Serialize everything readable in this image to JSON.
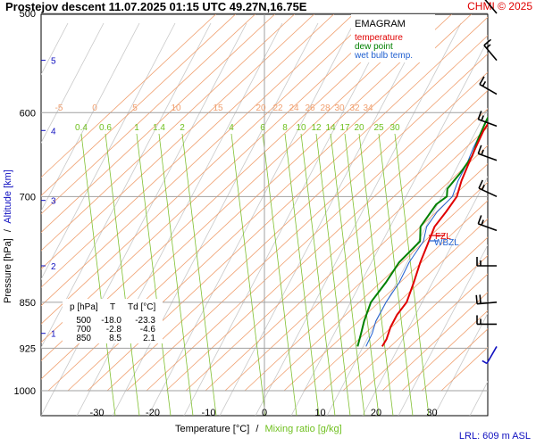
{
  "header": {
    "title": "Prostejov   descent   11.07.2025 01:15 UTC  49.27N,16.75E",
    "copyright": "CHMI © 2025"
  },
  "legend": {
    "title": "EMAGRAM",
    "items": [
      {
        "label": "temperature",
        "color": "#e00000"
      },
      {
        "label": "dew point",
        "color": "#008000"
      },
      {
        "label": "wet bulb temp.",
        "color": "#1f5fd0"
      }
    ]
  },
  "colors": {
    "temperature": "#e00000",
    "dewpoint": "#008000",
    "wetbulb": "#1f5fd0",
    "isotherm": "#f0a070",
    "mixing_ratio": "#80c030",
    "dry_adiabat": "#c8c8c8",
    "grid": "#a0a0a0",
    "altitude_text": "#1010c0"
  },
  "table": {
    "headers": [
      "p [hPa]",
      "T",
      "Td [°C]"
    ],
    "rows": [
      [
        "500",
        "-18.0",
        "-23.3"
      ],
      [
        "700",
        "-2.8",
        "-4.6"
      ],
      [
        "850",
        "8.5",
        "2.1"
      ]
    ]
  },
  "annotations": {
    "wbzl": "WBZL",
    "fzl": "FZL",
    "lrl": "LRL: 609 m ASL"
  },
  "chart_data": {
    "type": "line",
    "xlabel": "Temperature [°C]",
    "xlabel_sep": "/",
    "xlabel2": "Mixing ratio [g/kg]",
    "ylabel": "Pressure [hPa]",
    "ylabel_sep": "/",
    "ylabel2": "Altitude [km]",
    "xlim": [
      -40,
      40
    ],
    "ylim": [
      1000,
      500
    ],
    "y_scale": "log",
    "x_ticks": [
      -30,
      -20,
      -10,
      0,
      10,
      20,
      30
    ],
    "y_ticks": [
      500,
      600,
      700,
      850,
      925,
      1000
    ],
    "altitude_ticks": [
      {
        "km": 1,
        "p": 900
      },
      {
        "km": 2,
        "p": 795
      },
      {
        "km": 3,
        "p": 705
      },
      {
        "km": 4,
        "p": 620
      },
      {
        "km": 5,
        "p": 545
      }
    ],
    "isotherm_labels": [
      -5,
      0,
      5,
      10,
      15,
      20,
      22,
      24,
      26,
      28,
      30,
      32,
      34
    ],
    "mixing_ratio_labels": [
      0.4,
      0.6,
      1,
      1.4,
      2,
      4,
      6,
      8,
      10,
      12,
      14,
      17,
      20,
      25,
      30
    ],
    "series": [
      {
        "name": "temperature",
        "points": [
          {
            "p": 922,
            "t": 12.6
          },
          {
            "p": 910,
            "t": 12.0
          },
          {
            "p": 890,
            "t": 10.4
          },
          {
            "p": 870,
            "t": 9.2
          },
          {
            "p": 850,
            "t": 8.5
          },
          {
            "p": 820,
            "t": 6.0
          },
          {
            "p": 790,
            "t": 3.3
          },
          {
            "p": 765,
            "t": 1.2
          },
          {
            "p": 740,
            "t": -1.0
          },
          {
            "p": 720,
            "t": -1.8
          },
          {
            "p": 700,
            "t": -2.8
          },
          {
            "p": 680,
            "t": -5.0
          },
          {
            "p": 660,
            "t": -6.9
          },
          {
            "p": 640,
            "t": -8.8
          },
          {
            "p": 620,
            "t": -10.7
          },
          {
            "p": 600,
            "t": -12.0
          },
          {
            "p": 580,
            "t": -13.6
          },
          {
            "p": 560,
            "t": -14.6
          },
          {
            "p": 540,
            "t": -15.8
          },
          {
            "p": 520,
            "t": -16.9
          },
          {
            "p": 500,
            "t": -18.0
          }
        ]
      },
      {
        "name": "dew point",
        "points": [
          {
            "p": 922,
            "t": 8.2
          },
          {
            "p": 900,
            "t": 6.3
          },
          {
            "p": 880,
            "t": 4.5
          },
          {
            "p": 850,
            "t": 2.1
          },
          {
            "p": 820,
            "t": 1.0
          },
          {
            "p": 790,
            "t": -0.5
          },
          {
            "p": 760,
            "t": -0.8
          },
          {
            "p": 740,
            "t": -3.5
          },
          {
            "p": 710,
            "t": -5.0
          },
          {
            "p": 700,
            "t": -4.6
          },
          {
            "p": 690,
            "t": -6.0
          },
          {
            "p": 670,
            "t": -6.7
          },
          {
            "p": 650,
            "t": -7.8
          },
          {
            "p": 630,
            "t": -10.0
          },
          {
            "p": 610,
            "t": -12.0
          },
          {
            "p": 590,
            "t": -13.8
          },
          {
            "p": 575,
            "t": -14.0
          },
          {
            "p": 560,
            "t": -18.0
          },
          {
            "p": 545,
            "t": -19.5
          },
          {
            "p": 525,
            "t": -21.5
          },
          {
            "p": 510,
            "t": -24.0
          },
          {
            "p": 500,
            "t": -23.3
          }
        ]
      },
      {
        "name": "wet bulb temp.",
        "points": [
          {
            "p": 922,
            "t": 9.7
          },
          {
            "p": 900,
            "t": 8.3
          },
          {
            "p": 880,
            "t": 6.6
          },
          {
            "p": 850,
            "t": 4.8
          },
          {
            "p": 820,
            "t": 3.4
          },
          {
            "p": 790,
            "t": 1.3
          },
          {
            "p": 760,
            "t": -0.2
          },
          {
            "p": 740,
            "t": -2.4
          },
          {
            "p": 720,
            "t": -3.4
          },
          {
            "p": 700,
            "t": -3.6
          },
          {
            "p": 680,
            "t": -5.6
          },
          {
            "p": 660,
            "t": -7.2
          },
          {
            "p": 640,
            "t": -9.2
          },
          {
            "p": 620,
            "t": -11.0
          },
          {
            "p": 600,
            "t": -12.8
          },
          {
            "p": 580,
            "t": -14.0
          },
          {
            "p": 560,
            "t": -15.8
          },
          {
            "p": 540,
            "t": -17.2
          },
          {
            "p": 520,
            "t": -18.6
          },
          {
            "p": 500,
            "t": -20.0
          }
        ]
      }
    ],
    "wind_barbs": [
      {
        "p": 500,
        "dir": 320,
        "speed": 10
      },
      {
        "p": 545,
        "dir": 320,
        "speed": 15
      },
      {
        "p": 580,
        "dir": 300,
        "speed": 15
      },
      {
        "p": 615,
        "dir": 290,
        "speed": 15
      },
      {
        "p": 655,
        "dir": 290,
        "speed": 15
      },
      {
        "p": 700,
        "dir": 295,
        "speed": 15
      },
      {
        "p": 745,
        "dir": 290,
        "speed": 15
      },
      {
        "p": 795,
        "dir": 270,
        "speed": 15
      },
      {
        "p": 850,
        "dir": 265,
        "speed": 20
      },
      {
        "p": 885,
        "dir": 270,
        "speed": 15
      },
      {
        "p": 922,
        "dir": 210,
        "speed": 5
      }
    ]
  }
}
